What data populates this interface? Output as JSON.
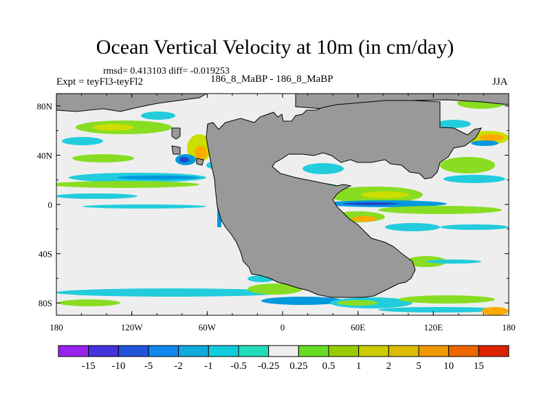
{
  "header": {
    "title": "Ocean Vertical Velocity at 10m (in cm/day)",
    "stats": "rmsd= 0.413103 diff= -0.019253",
    "expt": "Expt = teyFl3-teyFl2",
    "case": "186_8_MaBP - 186_8_MaBP",
    "season": "JJA"
  },
  "map": {
    "lon_ticks": [
      "180",
      "120W",
      "60W",
      "0",
      "60E",
      "120E",
      "180"
    ],
    "lat_ticks": [
      "80N",
      "40N",
      "0",
      "40S",
      "80S"
    ],
    "lon_range": [
      -180,
      180
    ],
    "lat_range": [
      -90,
      90
    ],
    "colors": {
      "land": "#999999",
      "ocean_neutral": "#eeeeee",
      "pos_light": "#88dd22",
      "pos_mid": "#ccdd00",
      "pos_strong": "#ffaa00",
      "neg_light": "#22ccdd",
      "neg_mid": "#0099dd",
      "neg_strong": "#2244cc"
    }
  },
  "colorbar": {
    "labels": [
      "-15",
      "-10",
      "-5",
      "-2",
      "-1",
      "-0.5",
      "-0.25",
      "0.25",
      "0.5",
      "1",
      "2",
      "5",
      "10",
      "15"
    ],
    "colors": [
      "#9922ee",
      "#4433dd",
      "#2255dd",
      "#1188ee",
      "#11aadd",
      "#11ccdd",
      "#22ddbb",
      "#eeeeee",
      "#66dd22",
      "#99cc00",
      "#cccc00",
      "#ddbb00",
      "#ee9900",
      "#ee6600",
      "#dd2200"
    ]
  }
}
